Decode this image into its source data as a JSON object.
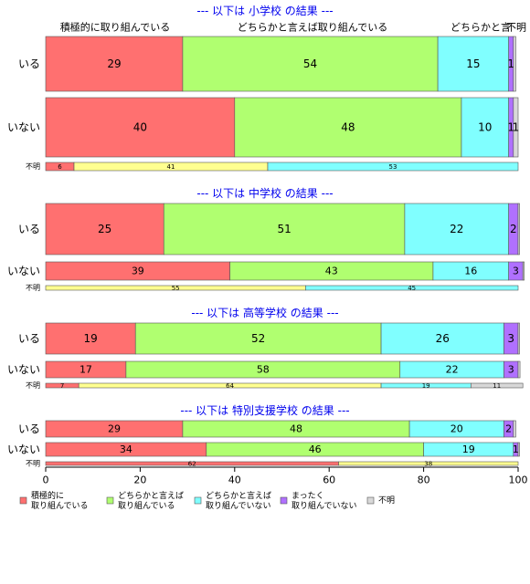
{
  "chart_data": {
    "type": "bar",
    "orientation": "horizontal",
    "stacked": true,
    "percent": true,
    "xlim": [
      0,
      100
    ],
    "x_ticks": [
      "0",
      "20",
      "40",
      "60",
      "80",
      "100"
    ],
    "categories": [
      "積極的に取り組んでいる",
      "どちらかと言えば取り組んでいる",
      "どちらかと言えば取り組んでいない",
      "まったく取り組んでいない",
      "不明"
    ],
    "legend": {
      "placement": "bottom",
      "items": [
        {
          "label": "積極的に\n取り組んでいる",
          "color": "#ff7070"
        },
        {
          "label": "どちらかと言えば\n取り組んでいる",
          "color": "#b0ff70"
        },
        {
          "label": "どちらかと言えば\n取り組んでいない",
          "color": "#80ffff"
        },
        {
          "label": "まったく\n取り組んでいない",
          "color": "#b070ff"
        },
        {
          "label": "不明",
          "color": "#d8d8d8"
        }
      ]
    },
    "top_header_labels": [
      "積極的に取り組んでいる",
      "どちらかと言えば取り組んでいる",
      "どちらかと言",
      "不明"
    ],
    "panels": [
      {
        "title": "--- 以下は 小学校 の結果 ---",
        "rows": [
          {
            "label": "いる",
            "values": [
              29,
              54,
              15,
              1,
              0.5
            ],
            "value_labels": [
              "29",
              "54",
              "15",
              "1",
              ""
            ]
          },
          {
            "label": "いない",
            "values": [
              40,
              48,
              10,
              1,
              1
            ],
            "value_labels": [
              "40",
              "48",
              "10",
              "1",
              "1"
            ]
          },
          {
            "label": "不明",
            "values": [
              6,
              41,
              53
            ],
            "value_labels": [
              "6",
              "41",
              "53"
            ],
            "segment_colors": [
              "#ff7070",
              "#ffff90",
              "#80ffff"
            ]
          }
        ]
      },
      {
        "title": "--- 以下は 中学校 の結果 ---",
        "rows": [
          {
            "label": "いる",
            "values": [
              25,
              51,
              22,
              2,
              0.3
            ],
            "value_labels": [
              "25",
              "51",
              "22",
              "2",
              ""
            ]
          },
          {
            "label": "いない",
            "values": [
              39,
              43,
              16,
              3,
              0.3
            ],
            "value_labels": [
              "39",
              "43",
              "16",
              "3",
              ""
            ]
          },
          {
            "label": "不明",
            "values": [
              55,
              45
            ],
            "value_labels": [
              "55",
              "45"
            ],
            "segment_colors": [
              "#ffff90",
              "#80ffff"
            ]
          }
        ]
      },
      {
        "title": "--- 以下は 高等学校 の結果 ---",
        "rows": [
          {
            "label": "いる",
            "values": [
              19,
              52,
              26,
              3,
              0.3
            ],
            "value_labels": [
              "19",
              "52",
              "26",
              "3",
              ""
            ]
          },
          {
            "label": "いない",
            "values": [
              17,
              58,
              22,
              3,
              0.4
            ],
            "value_labels": [
              "17",
              "58",
              "22",
              "3",
              ""
            ]
          },
          {
            "label": "不明",
            "values": [
              7,
              64,
              19,
              11
            ],
            "value_labels": [
              "7",
              "64",
              "19",
              "11"
            ],
            "segment_colors": [
              "#ff7070",
              "#ffff90",
              "#80ffff",
              "#d8d8d8"
            ]
          }
        ]
      },
      {
        "title": "--- 以下は 特別支援学校 の結果 ---",
        "rows": [
          {
            "label": "いる",
            "values": [
              29,
              48,
              20,
              2,
              0.5
            ],
            "value_labels": [
              "29",
              "48",
              "20",
              "2",
              ""
            ]
          },
          {
            "label": "いない",
            "values": [
              34,
              46,
              19,
              1,
              0.3
            ],
            "value_labels": [
              "34",
              "46",
              "19",
              "1",
              ""
            ]
          },
          {
            "label": "不明",
            "values": [
              62,
              38
            ],
            "value_labels": [
              "62",
              "38"
            ],
            "segment_colors": [
              "#ff7070",
              "#ffff90"
            ]
          }
        ]
      }
    ]
  }
}
